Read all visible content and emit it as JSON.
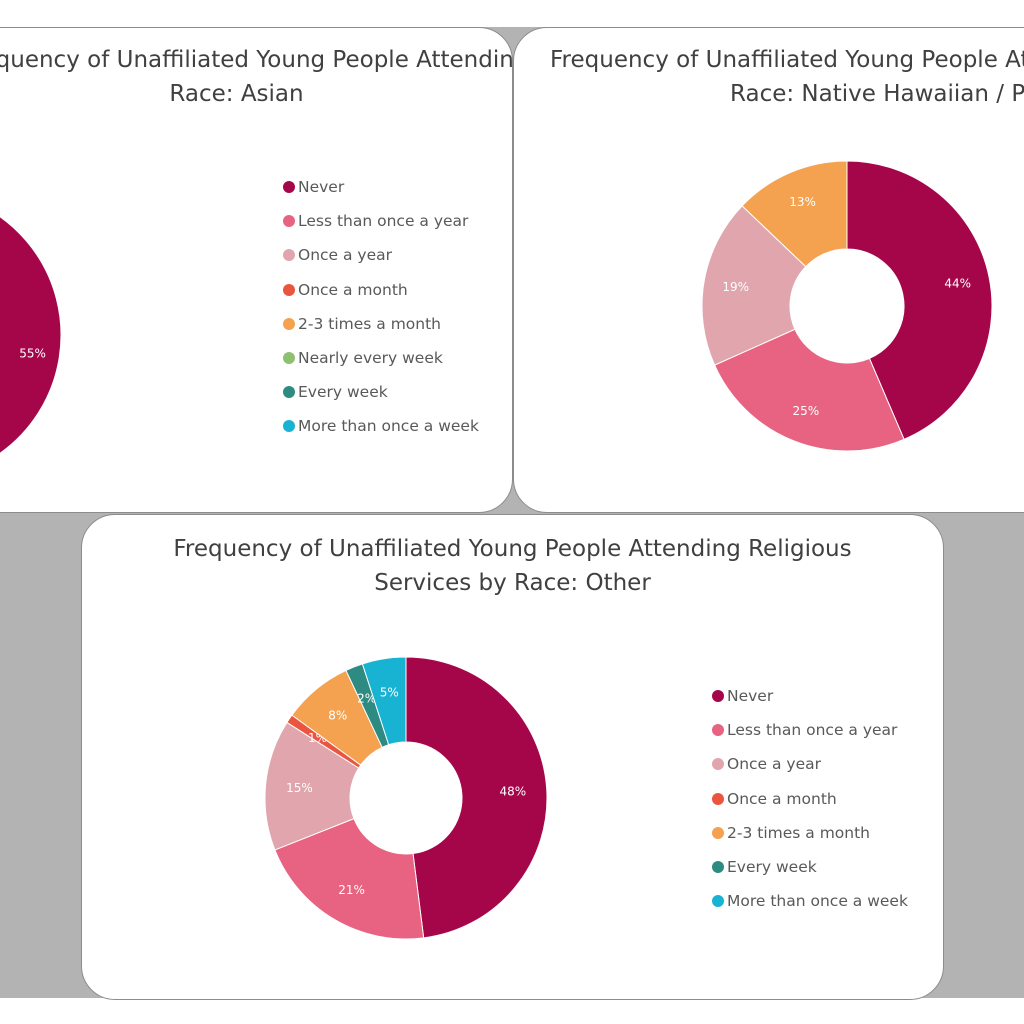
{
  "colors": {
    "Never": "#a5064a",
    "Less than once a year": "#e76381",
    "Once a year": "#e0a5ad",
    "Once a month": "#e9553f",
    "2-3 times a month": "#f4a24f",
    "Nearly every week": "#8fc071",
    "Every week": "#2e8b82",
    "More than once a week": "#18b2d3"
  },
  "chart_data": [
    {
      "type": "pie",
      "title_lines": [
        "Frequency of Unaffiliated Young People Attending Religious Services by",
        "Race: Asian"
      ],
      "categories": [
        "Never"
      ],
      "values": [
        55
      ],
      "data_labels": [
        "55%"
      ],
      "legend": [
        "Never",
        "Less than once a year",
        "Once a year",
        "Once a month",
        "2-3 times a month",
        "Nearly every week",
        "Every week",
        "More than once a week"
      ],
      "legend_position": "right"
    },
    {
      "type": "pie",
      "title_lines": [
        "Frequency of Unaffiliated Young People Attending Religious Services by",
        "Race: Native Hawaiian / Pacific Islander"
      ],
      "categories": [
        "Never",
        "Less than once a year",
        "Once a year",
        "2-3 times a month"
      ],
      "values": [
        44,
        25,
        19,
        13
      ],
      "data_labels": [
        "44%",
        "25%",
        "19%",
        "13%"
      ],
      "legend": []
    },
    {
      "type": "pie",
      "title_lines": [
        "Frequency of Unaffiliated Young People Attending Religious",
        "Services by Race: Other"
      ],
      "categories": [
        "Never",
        "Less than once a year",
        "Once a year",
        "Once a month",
        "2-3 times a month",
        "Every week",
        "More than once a week"
      ],
      "values": [
        48,
        21,
        15,
        1,
        8,
        2,
        5
      ],
      "data_labels": [
        "48%",
        "21%",
        "15%",
        "1%",
        "8%",
        "2%",
        "5%"
      ],
      "legend": [
        "Never",
        "Less than once a year",
        "Once a year",
        "Once a month",
        "2-3 times a month",
        "Every week",
        "More than once a week"
      ],
      "legend_position": "right"
    }
  ]
}
